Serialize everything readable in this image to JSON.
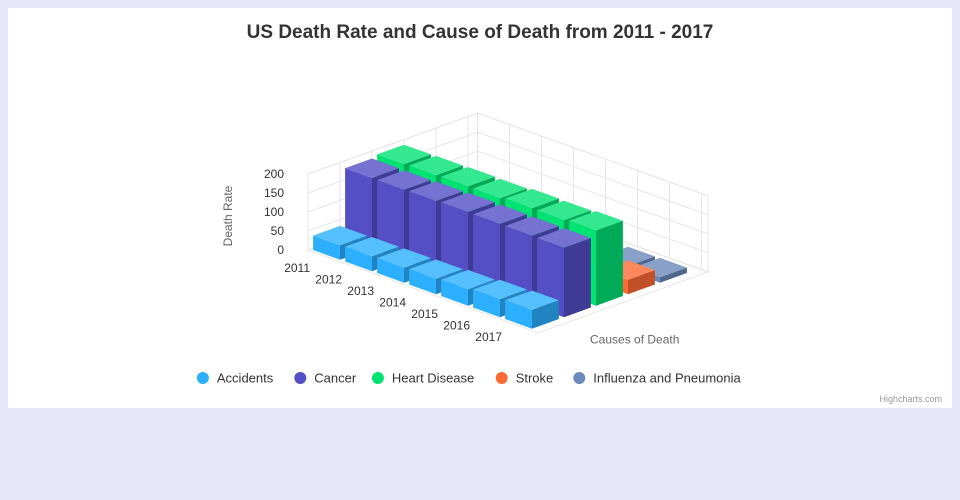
{
  "title": "US Death Rate and Cause of Death from 2011 - 2017",
  "credits": "Highcharts.com",
  "chart_data": {
    "type": "bar",
    "title": "US Death Rate and Cause of Death from 2011 - 2017",
    "ylabel": "Death Rate",
    "zlabel": "Causes of Death",
    "ylim": [
      0,
      200
    ],
    "yticks": [
      "0",
      "50",
      "100",
      "150",
      "200"
    ],
    "categories": [
      "2011",
      "2012",
      "2013",
      "2014",
      "2015",
      "2016",
      "2017"
    ],
    "legend_position": "bottom",
    "series": [
      {
        "name": "Accidents",
        "color": "#2caffe",
        "values": [
          38.0,
          39.1,
          39.4,
          40.5,
          43.2,
          47.4,
          49.4
        ]
      },
      {
        "name": "Cancer",
        "color": "#544fc5",
        "values": [
          185.0,
          184.0,
          185.0,
          186.0,
          185.0,
          184.0,
          183.0
        ]
      },
      {
        "name": "Heart Disease",
        "color": "#00e272",
        "values": [
          191.0,
          192.0,
          193.0,
          192.0,
          196.0,
          195.0,
          198.0
        ]
      },
      {
        "name": "Stroke",
        "color": "#fe6a35",
        "values": [
          null,
          null,
          null,
          null,
          null,
          null,
          38.0
        ]
      },
      {
        "name": "Influenza and Pneumonia",
        "color": "#6b8abc",
        "values": [
          null,
          null,
          null,
          null,
          null,
          13.5,
          14.3
        ]
      }
    ]
  }
}
